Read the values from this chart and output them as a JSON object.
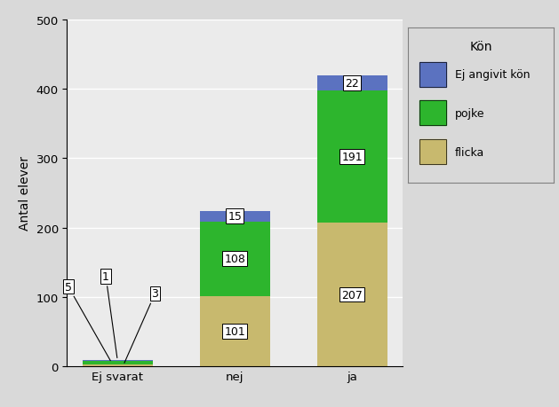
{
  "categories": [
    "Ej svarat",
    "nej",
    "ja"
  ],
  "flicka": [
    3,
    101,
    207
  ],
  "pojke": [
    5,
    108,
    191
  ],
  "ej_angivit": [
    1,
    15,
    22
  ],
  "colors": {
    "flicka": "#c8b96e",
    "pojke": "#2db52d",
    "ej_angivit": "#5b72c0"
  },
  "ylabel": "Antal elever",
  "legend_title": "Kön",
  "ylim": [
    0,
    500
  ],
  "yticks": [
    0,
    100,
    200,
    300,
    400,
    500
  ],
  "outer_bg": "#d9d9d9",
  "plot_bg": "#ebebeb",
  "annotation_fontsize": 9,
  "bar_width": 0.6
}
